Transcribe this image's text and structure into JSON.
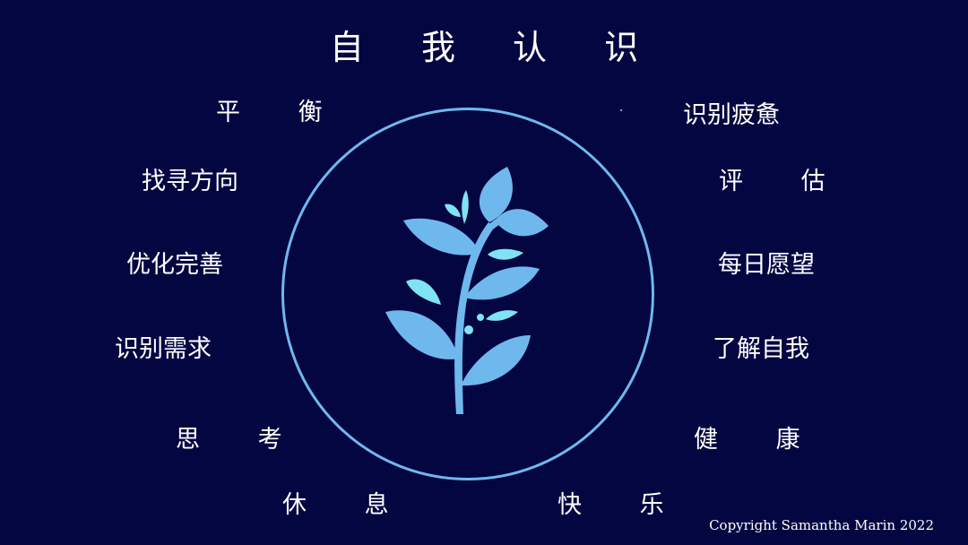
{
  "slide": {
    "title": "自 我 认 识",
    "left_labels": [
      "平 衡",
      "找寻方向",
      "优化完善",
      "识别需求",
      "思 考",
      "休 息"
    ],
    "right_labels": [
      "识别疲惫",
      "评 估",
      "每日愿望",
      "了解自我",
      "健 康",
      "快 乐"
    ],
    "copyright": "Copyright Samantha Marin 2022"
  },
  "colors": {
    "background": "#040641",
    "ring": "#6fb8ee",
    "leaf": "#6fb8ee",
    "droplet": "#7fe3f5",
    "text": "#ffffff"
  },
  "icons": {
    "center": "leafy-sprout-icon"
  }
}
